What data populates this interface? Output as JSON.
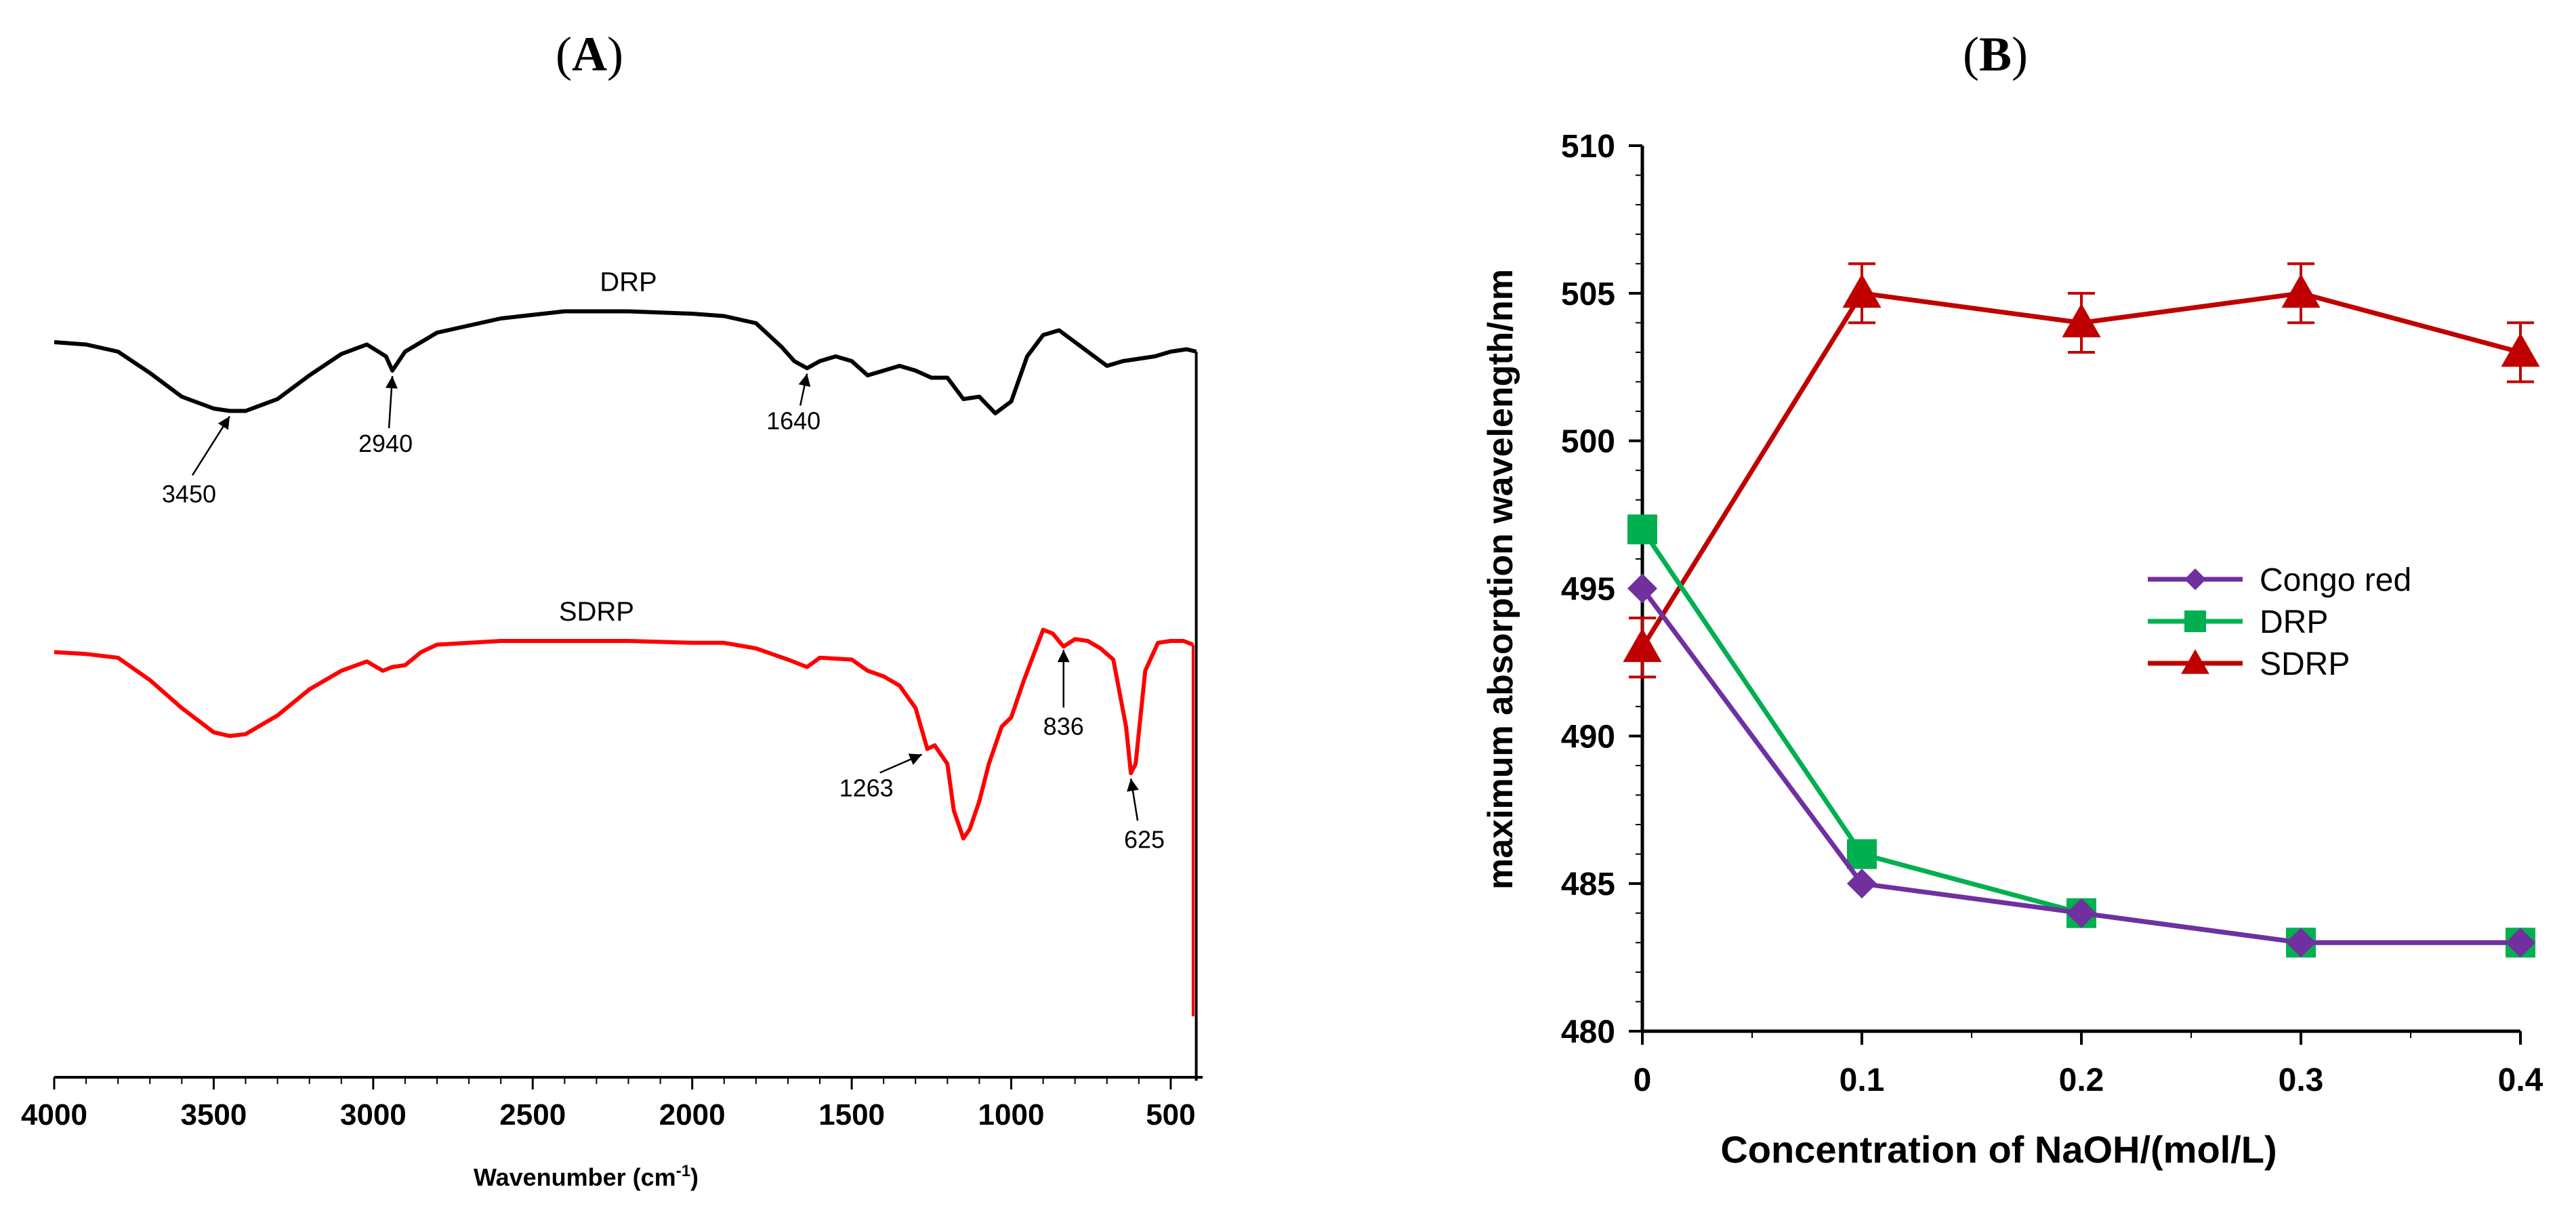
{
  "panel_labels": {
    "a": "A",
    "b": "B"
  },
  "chart_data": [
    {
      "type": "line",
      "panel": "A",
      "title": "",
      "xlabel": "Wavenumber (cm",
      "xlabel_sup": "-1",
      "xlabel_close": ")",
      "ylabel": "",
      "xlim": [
        4000,
        400
      ],
      "x_reversed": true,
      "x_ticks": [
        4000,
        3500,
        3000,
        2500,
        2000,
        1500,
        1000,
        500
      ],
      "series": [
        {
          "name": "DRP",
          "color": "#000000",
          "points": [
            [
              4000,
              0.7
            ],
            [
              3900,
              0.69
            ],
            [
              3800,
              0.66
            ],
            [
              3700,
              0.57
            ],
            [
              3600,
              0.47
            ],
            [
              3500,
              0.42
            ],
            [
              3450,
              0.41
            ],
            [
              3400,
              0.41
            ],
            [
              3300,
              0.46
            ],
            [
              3200,
              0.56
            ],
            [
              3100,
              0.65
            ],
            [
              3020,
              0.69
            ],
            [
              2960,
              0.64
            ],
            [
              2940,
              0.58
            ],
            [
              2900,
              0.66
            ],
            [
              2850,
              0.7
            ],
            [
              2800,
              0.74
            ],
            [
              2600,
              0.8
            ],
            [
              2400,
              0.83
            ],
            [
              2200,
              0.83
            ],
            [
              2000,
              0.82
            ],
            [
              1900,
              0.81
            ],
            [
              1800,
              0.78
            ],
            [
              1720,
              0.68
            ],
            [
              1680,
              0.62
            ],
            [
              1640,
              0.59
            ],
            [
              1600,
              0.62
            ],
            [
              1550,
              0.64
            ],
            [
              1500,
              0.62
            ],
            [
              1450,
              0.56
            ],
            [
              1400,
              0.58
            ],
            [
              1350,
              0.6
            ],
            [
              1300,
              0.58
            ],
            [
              1250,
              0.55
            ],
            [
              1200,
              0.55
            ],
            [
              1150,
              0.46
            ],
            [
              1100,
              0.47
            ],
            [
              1050,
              0.4
            ],
            [
              1000,
              0.45
            ],
            [
              950,
              0.64
            ],
            [
              900,
              0.73
            ],
            [
              850,
              0.75
            ],
            [
              800,
              0.7
            ],
            [
              750,
              0.65
            ],
            [
              700,
              0.6
            ],
            [
              650,
              0.62
            ],
            [
              600,
              0.63
            ],
            [
              550,
              0.64
            ],
            [
              500,
              0.66
            ],
            [
              450,
              0.67
            ],
            [
              420,
              0.66
            ]
          ]
        },
        {
          "name": "SDRP",
          "color": "#ff0000",
          "points": [
            [
              4000,
              0.7
            ],
            [
              3900,
              0.69
            ],
            [
              3800,
              0.67
            ],
            [
              3700,
              0.55
            ],
            [
              3600,
              0.4
            ],
            [
              3500,
              0.27
            ],
            [
              3450,
              0.25
            ],
            [
              3400,
              0.26
            ],
            [
              3300,
              0.36
            ],
            [
              3200,
              0.5
            ],
            [
              3100,
              0.6
            ],
            [
              3020,
              0.65
            ],
            [
              2970,
              0.6
            ],
            [
              2940,
              0.62
            ],
            [
              2900,
              0.63
            ],
            [
              2850,
              0.7
            ],
            [
              2800,
              0.74
            ],
            [
              2600,
              0.76
            ],
            [
              2400,
              0.76
            ],
            [
              2200,
              0.76
            ],
            [
              2000,
              0.75
            ],
            [
              1900,
              0.75
            ],
            [
              1800,
              0.72
            ],
            [
              1700,
              0.66
            ],
            [
              1640,
              0.62
            ],
            [
              1600,
              0.67
            ],
            [
              1500,
              0.66
            ],
            [
              1450,
              0.6
            ],
            [
              1400,
              0.57
            ],
            [
              1350,
              0.52
            ],
            [
              1300,
              0.4
            ],
            [
              1263,
              0.18
            ],
            [
              1240,
              0.2
            ],
            [
              1200,
              0.1
            ],
            [
              1180,
              -0.15
            ],
            [
              1150,
              -0.3
            ],
            [
              1130,
              -0.25
            ],
            [
              1100,
              -0.1
            ],
            [
              1070,
              0.1
            ],
            [
              1030,
              0.3
            ],
            [
              1000,
              0.35
            ],
            [
              960,
              0.55
            ],
            [
              900,
              0.82
            ],
            [
              870,
              0.8
            ],
            [
              836,
              0.73
            ],
            [
              800,
              0.77
            ],
            [
              760,
              0.76
            ],
            [
              720,
              0.72
            ],
            [
              680,
              0.66
            ],
            [
              640,
              0.3
            ],
            [
              625,
              0.05
            ],
            [
              610,
              0.1
            ],
            [
              580,
              0.6
            ],
            [
              540,
              0.75
            ],
            [
              500,
              0.76
            ],
            [
              460,
              0.76
            ],
            [
              430,
              0.74
            ]
          ]
        }
      ],
      "series_labels": [
        {
          "text": "DRP",
          "x": 2200,
          "series": 0
        },
        {
          "text": "SDRP",
          "x": 2300,
          "series": 1
        }
      ],
      "annotations": [
        {
          "text": "3450",
          "x": 3450,
          "series": 0
        },
        {
          "text": "2940",
          "x": 2940,
          "series": 0
        },
        {
          "text": "1640",
          "x": 1640,
          "series": 0
        },
        {
          "text": "1263",
          "x": 1263,
          "series": 1
        },
        {
          "text": "836",
          "x": 836,
          "series": 1
        },
        {
          "text": "625",
          "x": 625,
          "series": 1
        }
      ]
    },
    {
      "type": "line",
      "panel": "B",
      "title": "",
      "xlabel": "Concentration of NaOH/(mol/L)",
      "ylabel": "maximum absorption wavelength/nm",
      "xlim": [
        0,
        0.4
      ],
      "ylim": [
        480,
        510
      ],
      "x_ticks": [
        0,
        0.1,
        0.2,
        0.3,
        0.4
      ],
      "x_tick_labels": [
        "0",
        "0.1",
        "0.2",
        "0.3",
        "0.4"
      ],
      "y_ticks": [
        480,
        485,
        490,
        495,
        500,
        505,
        510
      ],
      "y_tick_labels": [
        "480",
        "485",
        "490",
        "495",
        "500",
        "505",
        "510"
      ],
      "categories": [
        0,
        0.1,
        0.2,
        0.3,
        0.4
      ],
      "legend_position": "right",
      "series": [
        {
          "name": "Congo red",
          "marker": "diamond",
          "color": "#7030a0",
          "values": [
            495,
            485,
            484,
            483,
            483
          ]
        },
        {
          "name": "DRP",
          "marker": "square",
          "color": "#00b050",
          "values": [
            497,
            486,
            484,
            483,
            483
          ]
        },
        {
          "name": "SDRP",
          "marker": "triangle",
          "color": "#c00000",
          "values": [
            493,
            505,
            504,
            505,
            503
          ],
          "error": [
            1,
            1,
            1,
            1,
            1
          ]
        }
      ]
    }
  ]
}
